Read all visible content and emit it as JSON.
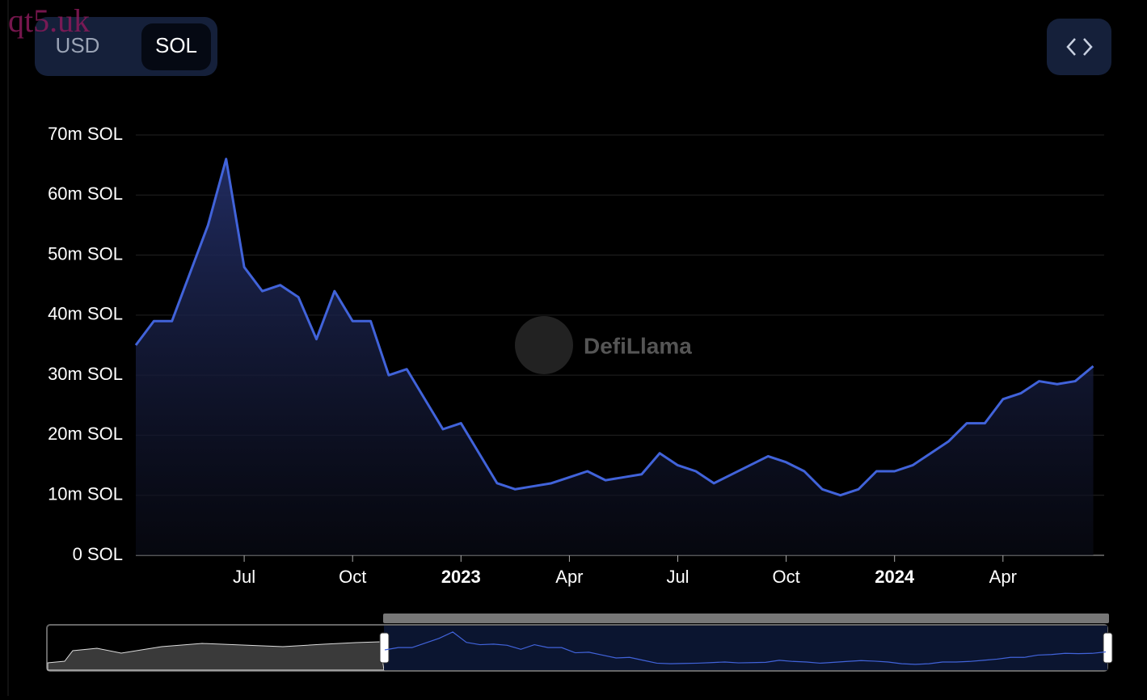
{
  "controls": {
    "options": [
      "USD",
      "SOL"
    ],
    "selected": 1
  },
  "overlay_text": "qt5.uk",
  "watermark": "DefiLlama",
  "chart_data": {
    "type": "area",
    "categories": [
      null,
      null,
      null,
      null,
      null,
      null,
      "Jul",
      null,
      null,
      null,
      null,
      null,
      "Oct",
      null,
      null,
      null,
      null,
      null,
      "2023",
      null,
      null,
      null,
      null,
      null,
      "Apr",
      null,
      null,
      null,
      null,
      null,
      "Jul",
      null,
      null,
      null,
      null,
      null,
      "Oct",
      null,
      null,
      null,
      null,
      null,
      "2024",
      null,
      null,
      null,
      null,
      null,
      "Apr",
      null,
      null,
      null,
      null,
      null
    ],
    "values": [
      35,
      39,
      39,
      47,
      55,
      66,
      48,
      44,
      45,
      43,
      36,
      44,
      39,
      39,
      30,
      31,
      26,
      21,
      22,
      17,
      12,
      11,
      11.5,
      12,
      13,
      14,
      12.5,
      13,
      13.5,
      17,
      15,
      14,
      12,
      13.5,
      15,
      16.5,
      15.5,
      14,
      11,
      10,
      11,
      14,
      14,
      15,
      17,
      19,
      22,
      22,
      26,
      27,
      29,
      28.5,
      29,
      31.5
    ],
    "color": "#4163da",
    "ylim": [
      0,
      70
    ],
    "yticks": [
      {
        "value": 0,
        "label": "0 SOL"
      },
      {
        "value": 10,
        "label": "10m SOL"
      },
      {
        "value": 20,
        "label": "20m SOL"
      },
      {
        "value": 30,
        "label": "30m SOL"
      },
      {
        "value": 40,
        "label": "40m SOL"
      },
      {
        "value": 50,
        "label": "50m SOL"
      },
      {
        "value": 60,
        "label": "60m SOL"
      },
      {
        "value": 70,
        "label": "70m SOL"
      }
    ],
    "grid": true
  }
}
